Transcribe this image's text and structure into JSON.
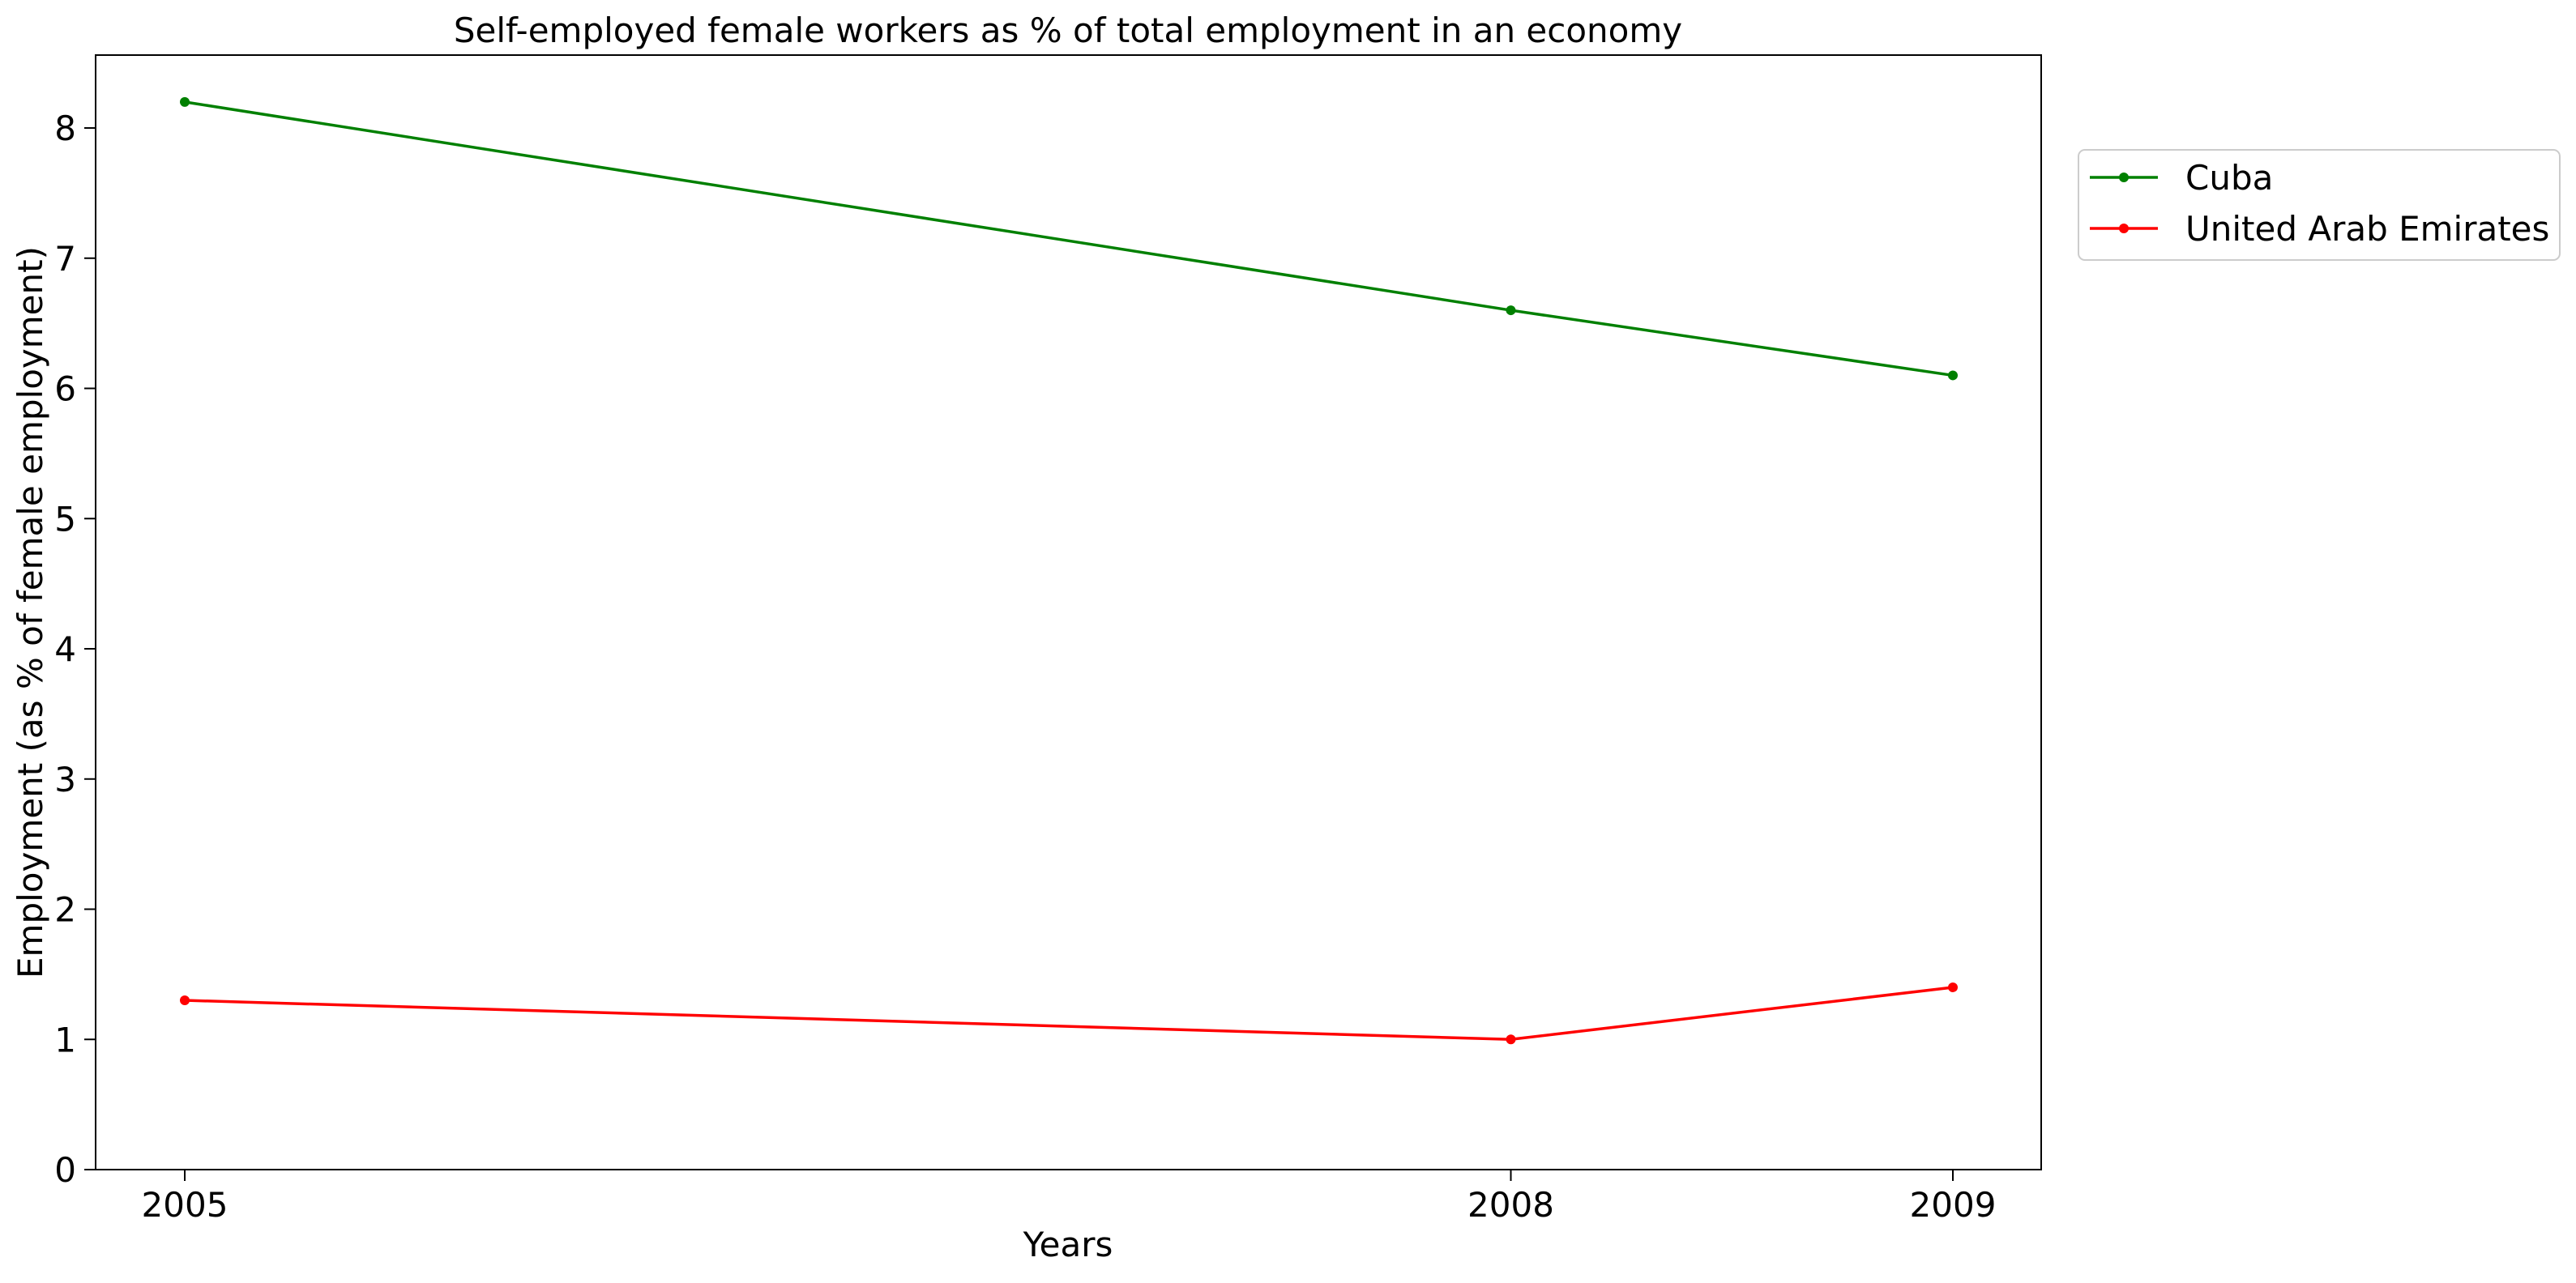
{
  "chart_data": {
    "type": "line",
    "title": "Self-employed female workers as % of total employment in an economy",
    "xlabel": "Years",
    "ylabel": "Employment (as % of female employment)",
    "categories": [
      "2005",
      "2008",
      "2009"
    ],
    "ylim": [
      0,
      8.56
    ],
    "yticks": [
      "0",
      "1",
      "2",
      "3",
      "4",
      "5",
      "6",
      "7",
      "8"
    ],
    "grid": false,
    "legend_position": "upper-right outside",
    "series": [
      {
        "name": "Cuba",
        "color": "#008000",
        "values": [
          8.2,
          6.6,
          6.1
        ]
      },
      {
        "name": "United Arab Emirates",
        "color": "#ff0000",
        "values": [
          1.3,
          1.0,
          1.4
        ]
      }
    ]
  }
}
